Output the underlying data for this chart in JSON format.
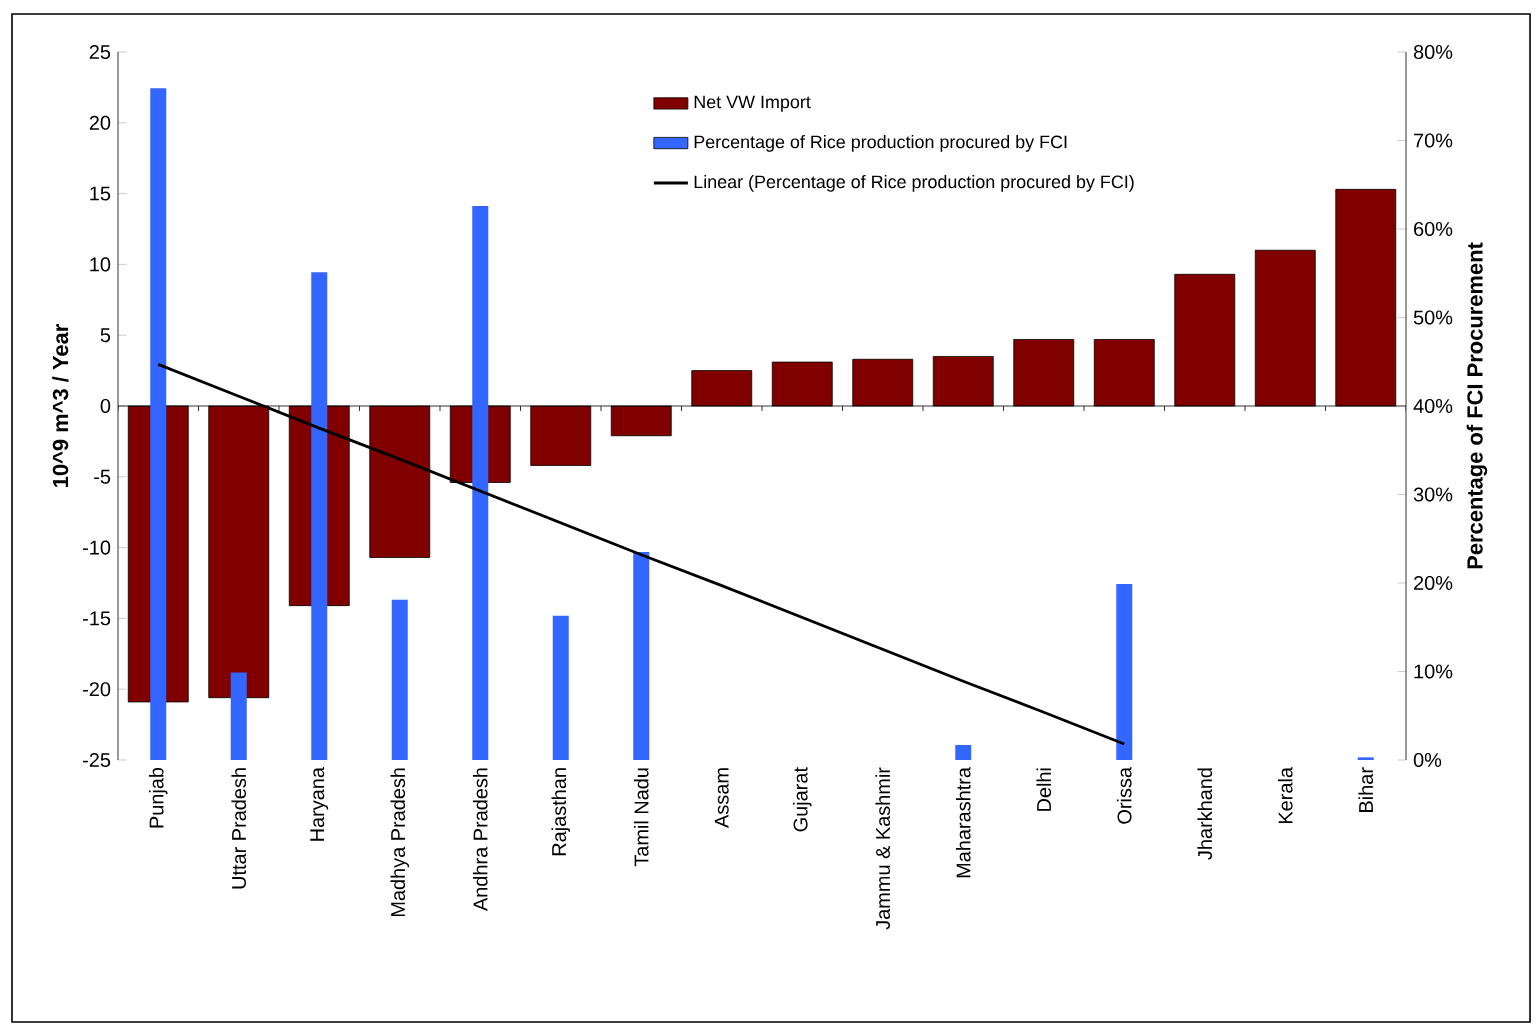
{
  "chart_data": {
    "type": "bar",
    "ylabel": "10^9 m^3 / Year",
    "y2label": "Percentage of FCI Procurement",
    "categories": [
      "Punjab",
      "Uttar Pradesh",
      "Haryana",
      "Madhya Pradesh",
      "Andhra Pradesh",
      "Rajasthan",
      "Tamil Nadu",
      "Assam",
      "Gujarat",
      "Jammu & Kashmir",
      "Maharashtra",
      "Delhi",
      "Orissa",
      "Jharkhand",
      "Kerala",
      "Bihar"
    ],
    "series": [
      {
        "name": "Net VW Import",
        "color": "#800000",
        "values": [
          -20.9,
          -20.6,
          -14.1,
          -10.7,
          -5.4,
          -4.2,
          -2.1,
          2.5,
          3.1,
          3.3,
          3.5,
          4.7,
          4.7,
          9.3,
          11.0,
          15.3
        ]
      },
      {
        "name": "Percentage of Rice production procured by FCI",
        "color": "#3366ff",
        "axis": "y2",
        "values": [
          75.9,
          9.9,
          55.1,
          18.1,
          62.6,
          16.3,
          23.5,
          0,
          0,
          0,
          1.7,
          0,
          19.9,
          0,
          0,
          0.3
        ]
      },
      {
        "name": "Linear (Percentage of Rice production procured by FCI)",
        "type": "line",
        "color": "#000000",
        "axis": "y2",
        "values": [
          44.7,
          41.1,
          37.5,
          34.0,
          30.4,
          26.8,
          23.2,
          19.7,
          16.1,
          12.5,
          8.9,
          5.4,
          1.8,
          null,
          null,
          null
        ]
      }
    ],
    "ylim": [
      -25,
      25
    ],
    "yticks": [
      -25,
      -20,
      -15,
      -10,
      -5,
      0,
      5,
      10,
      15,
      20,
      25
    ],
    "y2lim": [
      0,
      80
    ],
    "y2ticks": [
      {
        "value": 0,
        "label": "0%"
      },
      {
        "value": 10,
        "label": "10%"
      },
      {
        "value": 20,
        "label": "20%"
      },
      {
        "value": 30,
        "label": "30%"
      },
      {
        "value": 40,
        "label": "40%"
      },
      {
        "value": 50,
        "label": "50%"
      },
      {
        "value": 60,
        "label": "60%"
      },
      {
        "value": 70,
        "label": "70%"
      },
      {
        "value": 80,
        "label": "80%"
      }
    ],
    "ref_lines": [
      {
        "axis": "y",
        "value": 0,
        "color": "#000000"
      }
    ],
    "grid": false,
    "legend": "top"
  }
}
